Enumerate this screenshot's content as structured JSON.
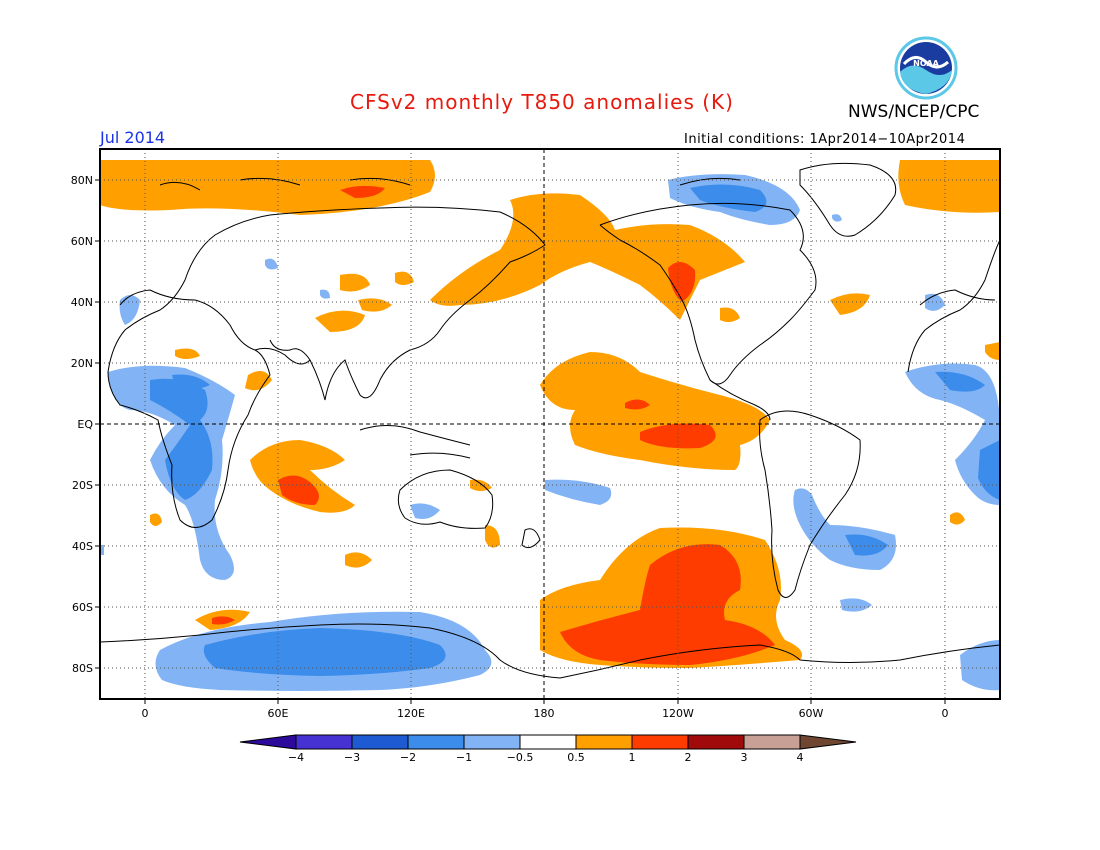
{
  "title": "CFSv2 monthly T850 anomalies (K)",
  "agency": "NWS/NCEP/CPC",
  "logo_text": "NOAA",
  "month": "Jul 2014",
  "initial_conditions": "Initial conditions: 1Apr2014−10Apr2014",
  "lat_labels": [
    "80N",
    "60N",
    "40N",
    "20N",
    "EQ",
    "20S",
    "40S",
    "60S",
    "80S"
  ],
  "lon_labels": [
    "0",
    "60E",
    "120E",
    "180",
    "120W",
    "60W",
    "0"
  ],
  "colorbar": {
    "labels": [
      "−4",
      "−3",
      "−2",
      "−1",
      "−0.5",
      "0.5",
      "1",
      "2",
      "3",
      "4"
    ],
    "colors": [
      "#2e0a9c",
      "#4632d2",
      "#1e5ad2",
      "#3c8ceb",
      "#82b4f5",
      "#ffffff",
      "#ffa000",
      "#ff3c00",
      "#a00a0a",
      "#c8a096",
      "#6e4632"
    ]
  },
  "colors": {
    "land_outline": "#000000",
    "grid": "#555555",
    "frame": "#000000"
  }
}
